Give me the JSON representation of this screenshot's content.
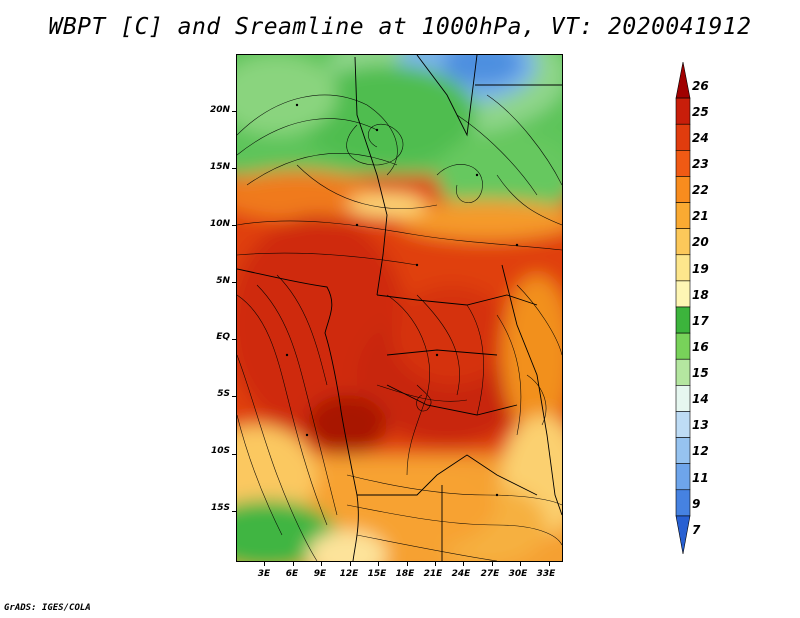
{
  "title": "WBPT [C] and Sreamline at 1000hPa, VT: 2020041912",
  "credit": "GrADS: IGES/COLA",
  "map": {
    "variable": "WBPT",
    "units": "C",
    "level": "1000hPa",
    "valid_time": "2020041912",
    "lat_labels": [
      "20N",
      "15N",
      "10N",
      "5N",
      "EQ",
      "5S",
      "10S",
      "15S"
    ],
    "lat_values": [
      20,
      15,
      10,
      5,
      0,
      -5,
      -10,
      -15
    ],
    "lon_labels": [
      "3E",
      "6E",
      "9E",
      "12E",
      "15E",
      "18E",
      "21E",
      "24E",
      "27E",
      "30E",
      "33E"
    ],
    "lon_values": [
      3,
      6,
      9,
      12,
      15,
      18,
      21,
      24,
      27,
      30,
      33
    ],
    "lat_range": [
      -19.5,
      25
    ],
    "lon_range": [
      0,
      34.5
    ]
  },
  "colorbar": {
    "labels": [
      "26",
      "25",
      "24",
      "23",
      "22",
      "21",
      "20",
      "19",
      "18",
      "17",
      "16",
      "15",
      "14",
      "13",
      "12",
      "11",
      "9",
      "7"
    ],
    "colors": [
      "#a00000",
      "#c81e0a",
      "#e03c0e",
      "#f05a14",
      "#f88c1e",
      "#faaa32",
      "#fcc85a",
      "#fde68c",
      "#fef6b4",
      "#3cb43c",
      "#78d25a",
      "#b4e6a0",
      "#e6f7f0",
      "#bedcf5",
      "#96c3f0",
      "#6ea5eb",
      "#4682e1",
      "#2860d2"
    ]
  }
}
